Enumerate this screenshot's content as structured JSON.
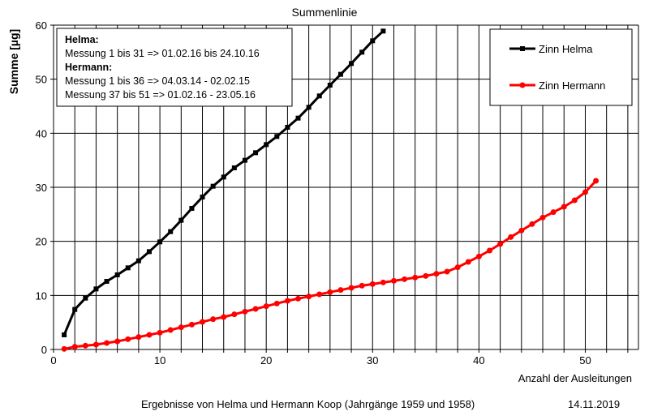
{
  "chart_data": {
    "type": "line",
    "title": "Summenlinie",
    "xlabel": "Anzahl der Ausleitungen",
    "ylabel": "Summe [µg]",
    "xlim": [
      0,
      55
    ],
    "ylim": [
      0,
      60
    ],
    "x_ticks": [
      0,
      10,
      20,
      30,
      40,
      50
    ],
    "y_ticks": [
      0,
      10,
      20,
      30,
      40,
      50,
      60
    ],
    "grid": true,
    "legend_position": "top-right",
    "series": [
      {
        "name": "Zinn Helma",
        "color": "#000000",
        "marker": "square",
        "x": [
          1,
          2,
          3,
          4,
          5,
          6,
          7,
          8,
          9,
          10,
          11,
          12,
          13,
          14,
          15,
          16,
          17,
          18,
          19,
          20,
          21,
          22,
          23,
          24,
          25,
          26,
          27,
          28,
          29,
          30,
          31
        ],
        "values": [
          2.7,
          7.4,
          9.5,
          11.2,
          12.6,
          13.8,
          15.1,
          16.4,
          18.1,
          19.9,
          21.8,
          23.9,
          26.1,
          28.2,
          30.2,
          31.9,
          33.6,
          35.0,
          36.4,
          37.9,
          39.4,
          41.1,
          42.8,
          44.8,
          46.9,
          48.9,
          50.9,
          52.9,
          55.0,
          57.1,
          58.9
        ]
      },
      {
        "name": "Zinn Hermann",
        "color": "#ff0000",
        "marker": "circle",
        "x": [
          1,
          2,
          3,
          4,
          5,
          6,
          7,
          8,
          9,
          10,
          11,
          12,
          13,
          14,
          15,
          16,
          17,
          18,
          19,
          20,
          21,
          22,
          23,
          24,
          25,
          26,
          27,
          28,
          29,
          30,
          31,
          32,
          33,
          34,
          35,
          36,
          37,
          38,
          39,
          40,
          41,
          42,
          43,
          44,
          45,
          46,
          47,
          48,
          49,
          50,
          51
        ],
        "values": [
          0.1,
          0.5,
          0.7,
          0.9,
          1.2,
          1.5,
          1.9,
          2.3,
          2.7,
          3.1,
          3.6,
          4.1,
          4.6,
          5.1,
          5.6,
          6.0,
          6.5,
          7.0,
          7.5,
          8.0,
          8.5,
          9.0,
          9.4,
          9.8,
          10.2,
          10.6,
          11.0,
          11.4,
          11.8,
          12.1,
          12.4,
          12.7,
          13.0,
          13.3,
          13.6,
          14.0,
          14.4,
          15.2,
          16.2,
          17.2,
          18.3,
          19.5,
          20.8,
          22.0,
          23.2,
          24.4,
          25.4,
          26.4,
          27.6,
          29.1,
          31.2
        ]
      }
    ],
    "annotation_lines": [
      {
        "text": "Helma:",
        "bold": true
      },
      {
        "text": "Messung 1 bis 31 => 01.02.16 bis 24.10.16",
        "bold": false
      },
      {
        "text": "Hermann:",
        "bold": true
      },
      {
        "text": "Messung 1 bis 36 => 04.03.14 - 02.02.15",
        "bold": false
      },
      {
        "text": "Messung 37 bis 51 => 01.02.16 - 23.05.16",
        "bold": false
      }
    ]
  },
  "footer": {
    "caption": "Ergebnisse von Helma und Hermann Koop (Jahrgänge 1959 und 1958)",
    "date": "14.11.2019"
  }
}
